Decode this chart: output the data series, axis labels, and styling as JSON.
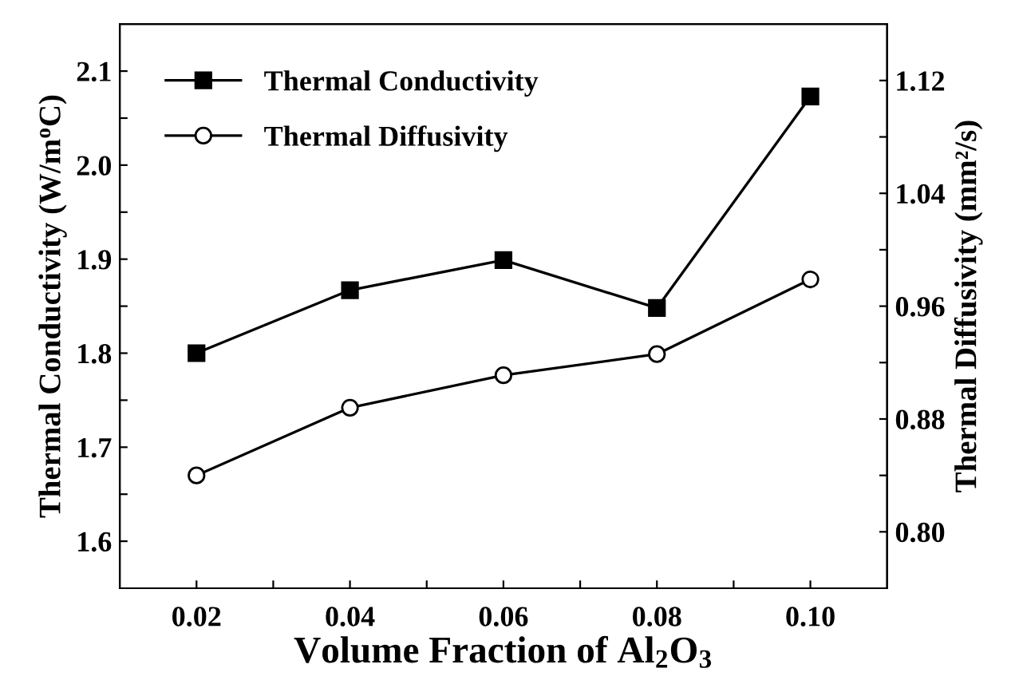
{
  "chart_data": {
    "type": "line",
    "xlabel": "Volume Fraction of Al$_{2}$O$_{3}$",
    "ylabel": "Thermal Conductivity (W/m$^{o}$C)",
    "y2label": "Thermal Diffusivity (mm²/s)",
    "x": [
      0.02,
      0.04,
      0.06,
      0.08,
      0.1
    ],
    "series": [
      {
        "name": "Thermal Conductivity",
        "color": "#000000",
        "marker": "square",
        "values": [
          1.8,
          1.867,
          1.899,
          1.848,
          2.073
        ]
      },
      {
        "name": "Thermal Diffusivity",
        "color": "#000000",
        "marker": "circle",
        "axis": "y2",
        "values": [
          0.84,
          0.888,
          0.911,
          0.926,
          0.979
        ]
      }
    ],
    "xlim": [
      0.01,
      0.11
    ],
    "xticks": [
      {
        "value": 0.02,
        "label": "0.02"
      },
      {
        "value": 0.03,
        "label": null
      },
      {
        "value": 0.04,
        "label": "0.04"
      },
      {
        "value": 0.05,
        "label": null
      },
      {
        "value": 0.06,
        "label": "0.06"
      },
      {
        "value": 0.07,
        "label": null
      },
      {
        "value": 0.08,
        "label": "0.08"
      },
      {
        "value": 0.09,
        "label": null
      },
      {
        "value": 0.1,
        "label": "0.10"
      }
    ],
    "ylim": [
      1.55,
      2.15
    ],
    "yticks": [
      {
        "value": 1.6,
        "label": "1.6"
      },
      {
        "value": 1.65,
        "label": null
      },
      {
        "value": 1.7,
        "label": "1.7"
      },
      {
        "value": 1.75,
        "label": null
      },
      {
        "value": 1.8,
        "label": "1.8"
      },
      {
        "value": 1.85,
        "label": null
      },
      {
        "value": 1.9,
        "label": "1.9"
      },
      {
        "value": 1.95,
        "label": null
      },
      {
        "value": 2.0,
        "label": "2.0"
      },
      {
        "value": 2.05,
        "label": null
      },
      {
        "value": 2.1,
        "label": "2.1"
      }
    ],
    "y2lim": [
      0.76,
      1.16
    ],
    "y2ticks": [
      {
        "value": 0.8,
        "label": "0.80"
      },
      {
        "value": 0.84,
        "label": null
      },
      {
        "value": 0.88,
        "label": "0.88"
      },
      {
        "value": 0.92,
        "label": null
      },
      {
        "value": 0.96,
        "label": "0.96"
      },
      {
        "value": 1.0,
        "label": null
      },
      {
        "value": 1.04,
        "label": "1.04"
      },
      {
        "value": 1.08,
        "label": null
      },
      {
        "value": 1.12,
        "label": "1.12"
      }
    ],
    "legend": "top left",
    "grid": false,
    "line_style": "solid"
  }
}
